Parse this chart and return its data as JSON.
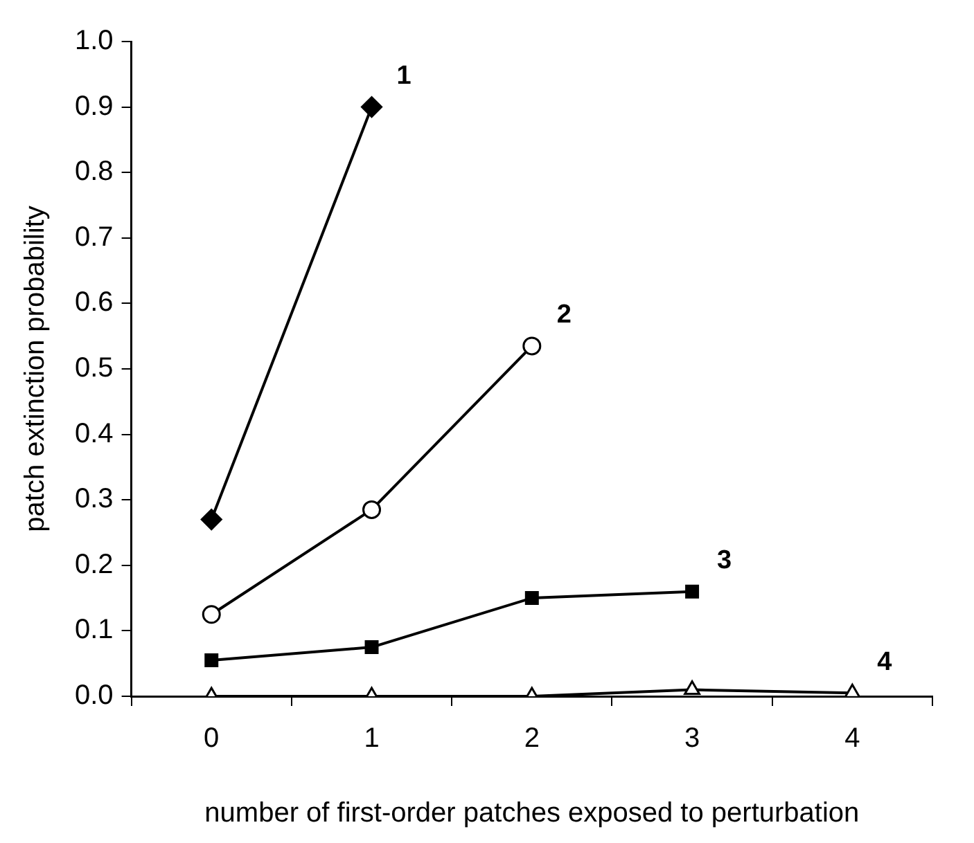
{
  "chart_data": {
    "type": "line",
    "xlabel": "number of first-order patches exposed to perturbation",
    "ylabel": "patch extinction probability",
    "categories": [
      "0",
      "1",
      "2",
      "3",
      "4"
    ],
    "series": [
      {
        "name": "1",
        "color": "#000000",
        "marker": "diamond",
        "values": [
          0.27,
          0.9,
          null,
          null,
          null
        ]
      },
      {
        "name": "2",
        "color": "#000000",
        "marker": "circle",
        "values": [
          0.125,
          0.285,
          0.535,
          null,
          null
        ]
      },
      {
        "name": "3",
        "color": "#000000",
        "marker": "square",
        "values": [
          0.055,
          0.075,
          0.15,
          0.16,
          null
        ]
      },
      {
        "name": "4",
        "color": "#000000",
        "marker": "triangle",
        "values": [
          0,
          0,
          0,
          0.01,
          0.005
        ]
      }
    ],
    "ylim": [
      0,
      1
    ],
    "yticks": [
      {
        "value": 0,
        "label": "0.0"
      },
      {
        "value": 0.1,
        "label": "0.1"
      },
      {
        "value": 0.2,
        "label": "0.2"
      },
      {
        "value": 0.3,
        "label": "0.3"
      },
      {
        "value": 0.4,
        "label": "0.4"
      },
      {
        "value": 0.5,
        "label": "0.5"
      },
      {
        "value": 0.6,
        "label": "0.6"
      },
      {
        "value": 0.7,
        "label": "0.7"
      },
      {
        "value": 0.8,
        "label": "0.8"
      },
      {
        "value": 0.9,
        "label": "0.9"
      },
      {
        "value": 1,
        "label": "1.0"
      }
    ],
    "grid": false,
    "legend": false,
    "line_style": "solid"
  }
}
